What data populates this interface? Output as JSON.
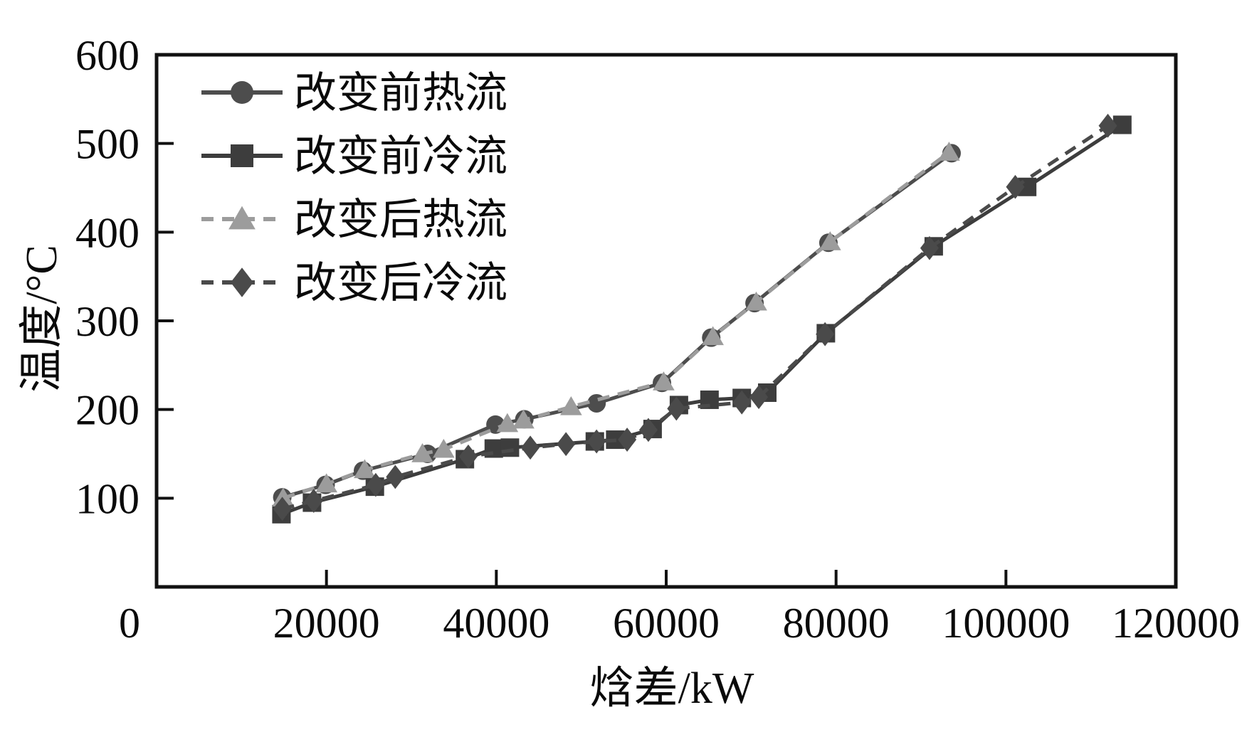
{
  "chart_data": {
    "type": "line",
    "title": "",
    "xlabel": "焓差/kW",
    "ylabel": "温度/°C",
    "xlim": [
      0,
      120000
    ],
    "ylim": [
      0,
      600
    ],
    "x_ticks": [
      0,
      20000,
      40000,
      60000,
      80000,
      100000,
      120000
    ],
    "y_ticks": [
      100,
      200,
      300,
      400,
      500,
      600
    ],
    "grid": false,
    "legend_position": "top-left",
    "axis_color": "#111111",
    "text_color": "#0a0a0a",
    "series": [
      {
        "name": "改变前热流",
        "marker": "circle",
        "line_style": "solid",
        "color": "#4d4d4d",
        "points": [
          [
            14800,
            101
          ],
          [
            19900,
            115
          ],
          [
            24300,
            131
          ],
          [
            31900,
            150
          ],
          [
            39900,
            183
          ],
          [
            43300,
            189
          ],
          [
            51800,
            207
          ],
          [
            59500,
            230
          ],
          [
            65300,
            281
          ],
          [
            70400,
            320
          ],
          [
            79100,
            388
          ],
          [
            93600,
            489
          ]
        ]
      },
      {
        "name": "改变前冷流",
        "marker": "square",
        "line_style": "solid",
        "color": "#3d3d3d",
        "points": [
          [
            14700,
            82
          ],
          [
            18300,
            95
          ],
          [
            25700,
            113
          ],
          [
            36300,
            144
          ],
          [
            39700,
            156
          ],
          [
            41600,
            157
          ],
          [
            51600,
            164
          ],
          [
            54000,
            166
          ],
          [
            58400,
            178
          ],
          [
            61500,
            205
          ],
          [
            65100,
            211
          ],
          [
            68900,
            213
          ],
          [
            71900,
            219
          ],
          [
            78800,
            286
          ],
          [
            91500,
            384
          ],
          [
            102500,
            451
          ],
          [
            113700,
            521
          ]
        ]
      },
      {
        "name": "改变后热流",
        "marker": "triangle",
        "line_style": "dashed",
        "color": "#9c9c9c",
        "points": [
          [
            14900,
            100
          ],
          [
            20000,
            116
          ],
          [
            24500,
            132
          ],
          [
            31300,
            150
          ],
          [
            33800,
            155
          ],
          [
            41300,
            184
          ],
          [
            43200,
            188
          ],
          [
            48800,
            203
          ],
          [
            59700,
            231
          ],
          [
            65500,
            282
          ],
          [
            70600,
            321
          ],
          [
            79300,
            389
          ],
          [
            93300,
            490
          ]
        ]
      },
      {
        "name": "改变后冷流",
        "marker": "diamond",
        "line_style": "dashed",
        "color": "#4a4a4a",
        "points": [
          [
            14800,
            88
          ],
          [
            18500,
            97
          ],
          [
            25800,
            115
          ],
          [
            28100,
            124
          ],
          [
            36700,
            147
          ],
          [
            44000,
            157
          ],
          [
            48200,
            161
          ],
          [
            51800,
            164
          ],
          [
            55400,
            166
          ],
          [
            57900,
            177
          ],
          [
            61200,
            201
          ],
          [
            68900,
            208
          ],
          [
            70900,
            214
          ],
          [
            78700,
            285
          ],
          [
            91000,
            382
          ],
          [
            101100,
            451
          ],
          [
            112000,
            520
          ]
        ]
      }
    ]
  }
}
